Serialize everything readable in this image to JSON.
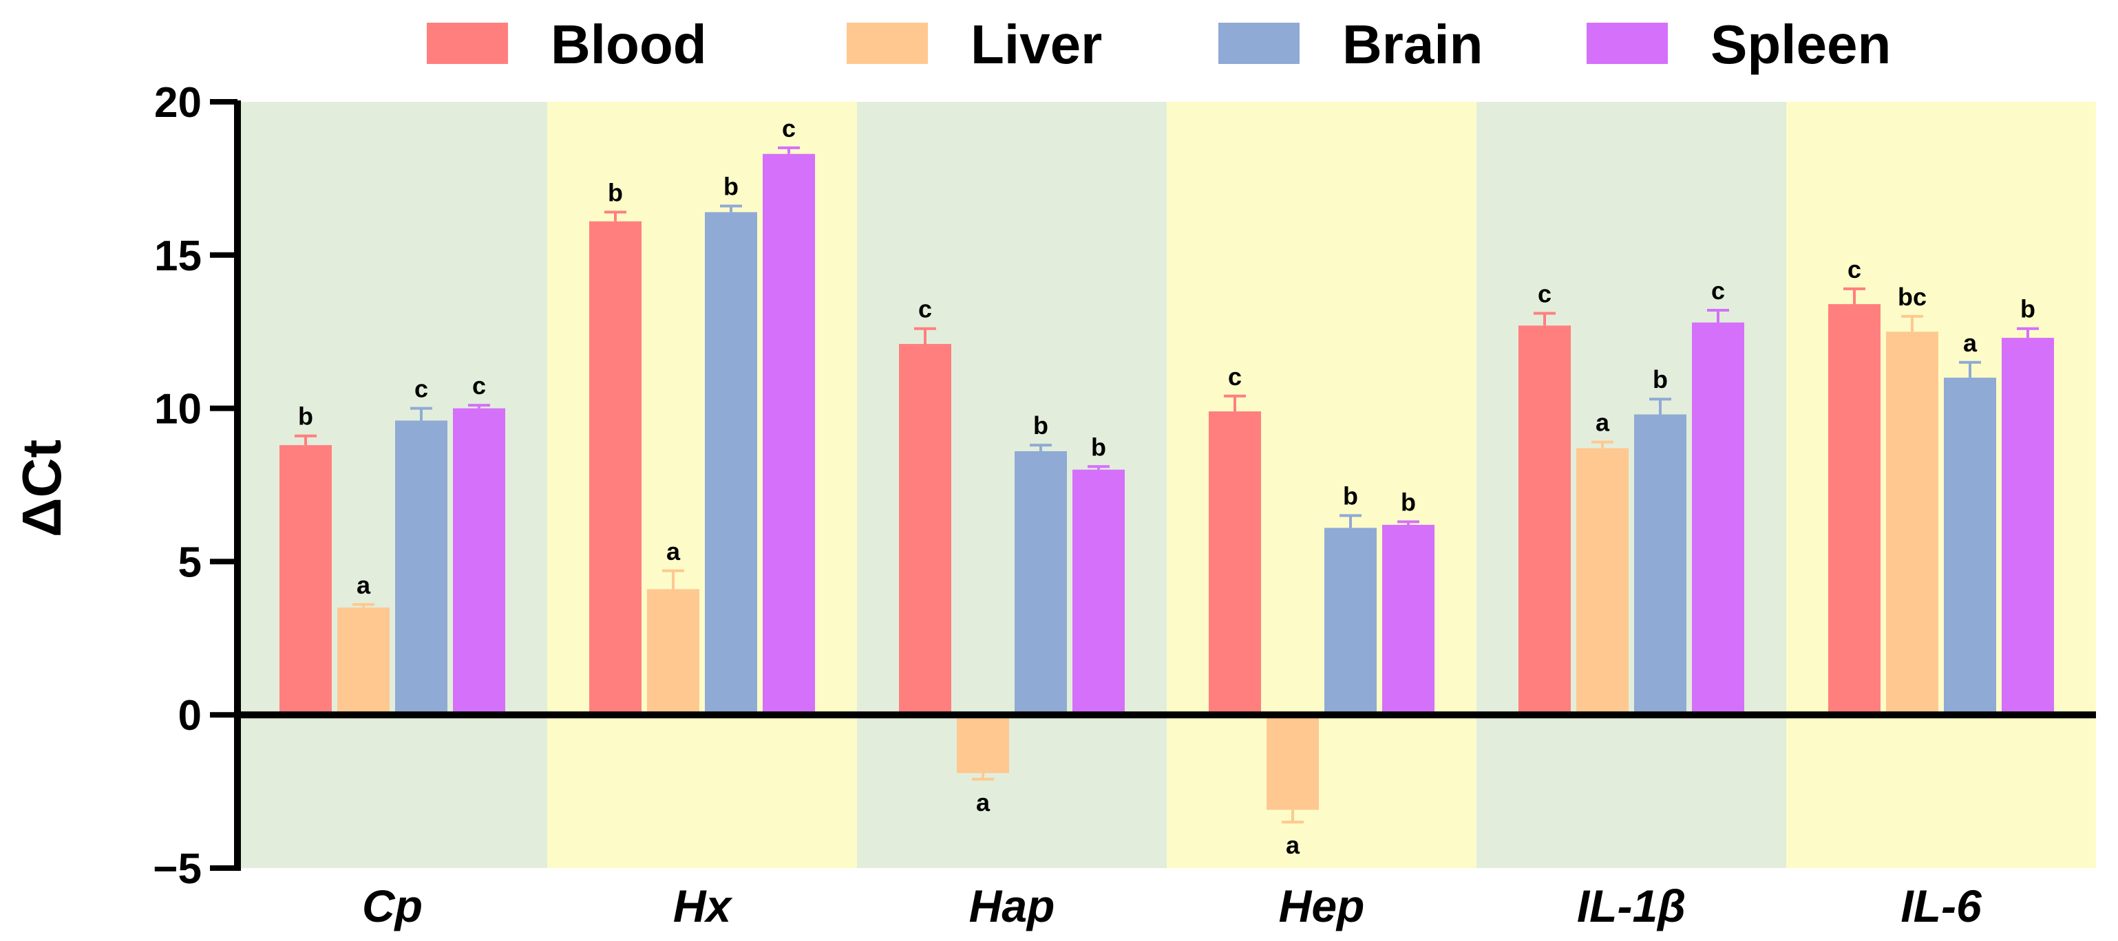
{
  "chart_data": {
    "type": "bar",
    "title": "",
    "xlabel": "",
    "ylabel": "ΔCt",
    "ylim": [
      -5,
      20
    ],
    "yticks": [
      -5,
      0,
      5,
      10,
      15,
      20
    ],
    "legend_position": "top",
    "categories": [
      "Cp",
      "Hx",
      "Hap",
      "Hep",
      "IL-1β",
      "IL-6"
    ],
    "background_bands": [
      "#e2eedb",
      "#fdfcc8",
      "#e2eedb",
      "#fdfcc8",
      "#e2eedb",
      "#fdfcc8"
    ],
    "series": [
      {
        "name": "Blood",
        "color": "#ff7f7f",
        "values": [
          8.8,
          16.1,
          12.1,
          9.9,
          12.7,
          13.4
        ],
        "errors": [
          0.3,
          0.3,
          0.5,
          0.5,
          0.4,
          0.5
        ],
        "labels": [
          "b",
          "b",
          "c",
          "c",
          "c",
          "c"
        ]
      },
      {
        "name": "Liver",
        "color": "#ffc891",
        "values": [
          3.5,
          4.1,
          -1.9,
          -3.1,
          8.7,
          12.5
        ],
        "errors": [
          0.1,
          0.6,
          0.2,
          0.4,
          0.2,
          0.5
        ],
        "labels": [
          "a",
          "a",
          "a",
          "a",
          "a",
          "bc"
        ]
      },
      {
        "name": "Brain",
        "color": "#8faad4",
        "values": [
          9.6,
          16.4,
          8.6,
          6.1,
          9.8,
          11.0
        ],
        "errors": [
          0.4,
          0.2,
          0.2,
          0.4,
          0.5,
          0.5
        ],
        "labels": [
          "c",
          "b",
          "b",
          "b",
          "b",
          "a"
        ]
      },
      {
        "name": "Spleen",
        "color": "#d470fa",
        "values": [
          10.0,
          18.3,
          8.0,
          6.2,
          12.8,
          12.3
        ],
        "errors": [
          0.1,
          0.2,
          0.1,
          0.1,
          0.4,
          0.3
        ],
        "labels": [
          "c",
          "c",
          "b",
          "b",
          "c",
          "b"
        ]
      }
    ]
  }
}
